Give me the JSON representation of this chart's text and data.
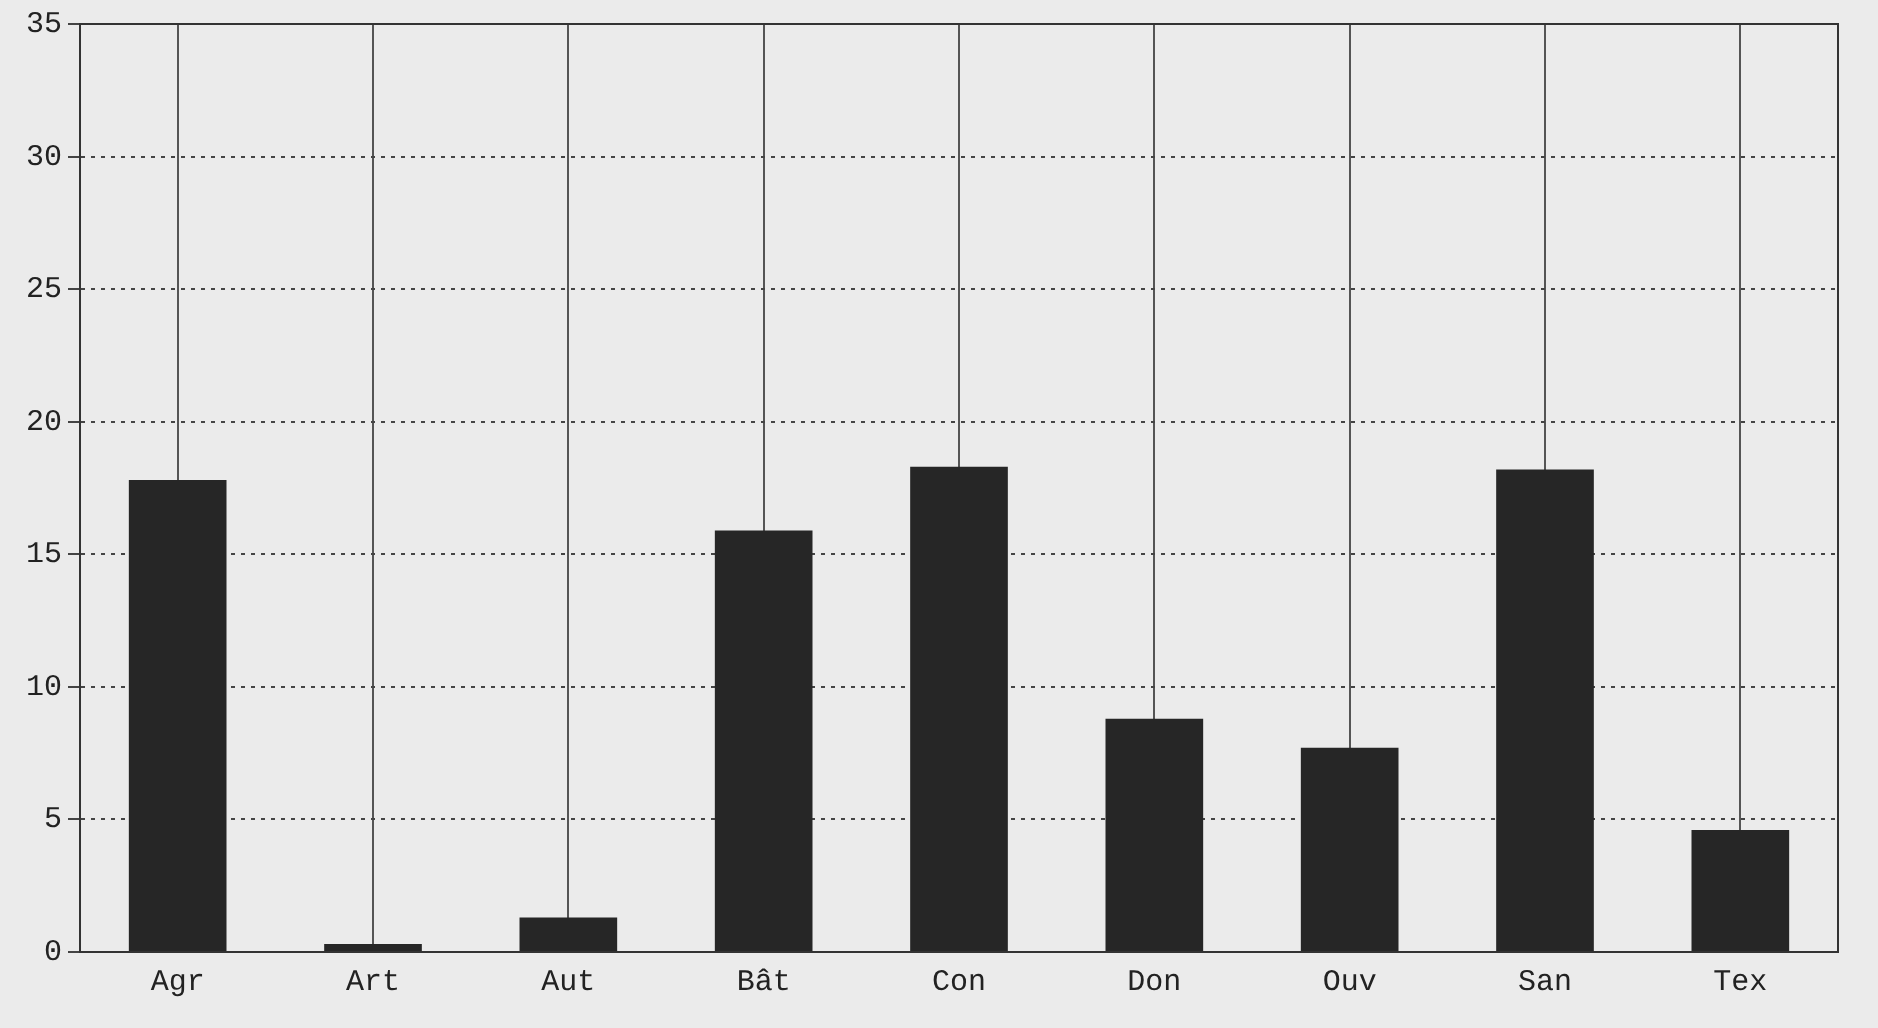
{
  "chart_data": {
    "type": "bar",
    "categories": [
      "Agr",
      "Art",
      "Aut",
      "Bât",
      "Con",
      "Don",
      "Ouv",
      "San",
      "Tex"
    ],
    "values": [
      17.8,
      0.3,
      1.3,
      15.9,
      18.3,
      8.8,
      7.7,
      18.2,
      4.6
    ],
    "color": "#262626",
    "ylim": [
      0,
      35
    ],
    "yticks": [
      0,
      5,
      10,
      15,
      20,
      25,
      30,
      35
    ],
    "grid": true
  }
}
